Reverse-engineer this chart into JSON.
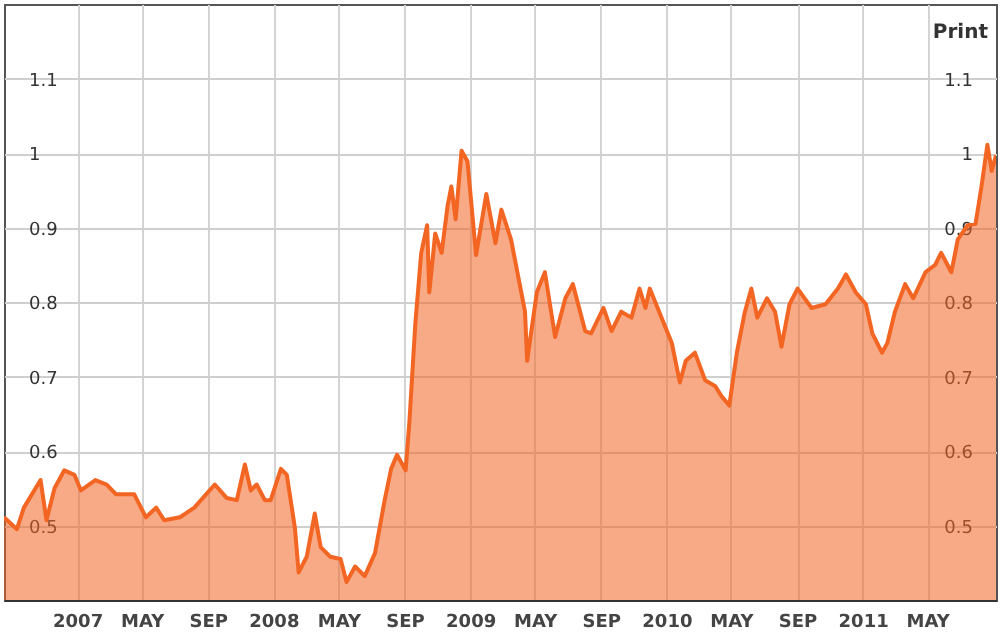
{
  "chart_data": {
    "type": "area",
    "annotations": [
      "Print"
    ],
    "x": [
      "2006-08-18",
      "2006-09-11",
      "2006-09-24",
      "2006-10-25",
      "2006-11-05",
      "2006-11-20",
      "2006-12-08",
      "2006-12-27",
      "2007-01-08",
      "2007-02-04",
      "2007-02-25",
      "2007-03-14",
      "2007-04-17",
      "2007-05-09",
      "2007-05-28",
      "2007-06-12",
      "2007-07-11",
      "2007-08-07",
      "2007-09-14",
      "2007-10-06",
      "2007-10-25",
      "2007-11-09",
      "2007-11-20",
      "2007-12-01",
      "2007-12-16",
      "2007-12-27",
      "2008-01-15",
      "2008-01-26",
      "2008-02-10",
      "2008-02-17",
      "2008-03-03",
      "2008-03-18",
      "2008-03-29",
      "2008-04-16",
      "2008-05-05",
      "2008-05-16",
      "2008-06-01",
      "2008-06-19",
      "2008-07-08",
      "2008-07-26",
      "2008-08-07",
      "2008-08-18",
      "2008-09-03",
      "2008-09-10",
      "2008-09-21",
      "2008-10-02",
      "2008-10-13",
      "2008-10-17",
      "2008-10-28",
      "2008-11-09",
      "2008-11-20",
      "2008-11-27",
      "2008-12-05",
      "2008-12-16",
      "2008-12-27",
      "2009-01-12",
      "2009-01-31",
      "2009-02-17",
      "2009-02-28",
      "2009-03-18",
      "2009-04-13",
      "2009-04-17",
      "2009-05-05",
      "2009-05-20",
      "2009-06-08",
      "2009-06-27",
      "2009-07-11",
      "2009-08-03",
      "2009-08-14",
      "2009-09-06",
      "2009-09-21",
      "2009-10-09",
      "2009-10-28",
      "2009-11-12",
      "2009-11-23",
      "2009-12-01",
      "2009-12-23",
      "2010-01-11",
      "2010-01-26",
      "2010-02-06",
      "2010-02-23",
      "2010-03-14",
      "2010-04-02",
      "2010-04-13",
      "2010-04-28",
      "2010-05-12",
      "2010-05-27",
      "2010-06-08",
      "2010-06-19",
      "2010-07-07",
      "2010-07-22",
      "2010-08-03",
      "2010-08-18",
      "2010-09-02",
      "2010-09-28",
      "2010-10-24",
      "2010-11-16",
      "2010-12-01",
      "2010-12-19",
      "2011-01-07",
      "2011-01-19",
      "2011-02-06",
      "2011-02-16",
      "2011-03-02",
      "2011-03-21",
      "2011-04-05",
      "2011-04-28",
      "2011-05-16",
      "2011-05-27",
      "2011-06-15",
      "2011-06-27",
      "2011-07-15",
      "2011-07-30",
      "2011-08-10",
      "2011-08-21",
      "2011-08-29",
      "2011-09-06"
    ],
    "series": [
      {
        "color": "#f26522",
        "values": [
          0.511,
          0.495,
          0.524,
          0.561,
          0.507,
          0.55,
          0.574,
          0.568,
          0.547,
          0.561,
          0.555,
          0.542,
          0.542,
          0.511,
          0.524,
          0.507,
          0.511,
          0.524,
          0.555,
          0.537,
          0.534,
          0.582,
          0.547,
          0.555,
          0.534,
          0.534,
          0.576,
          0.568,
          0.497,
          0.437,
          0.458,
          0.516,
          0.471,
          0.458,
          0.455,
          0.424,
          0.445,
          0.432,
          0.463,
          0.534,
          0.576,
          0.595,
          0.574,
          0.639,
          0.771,
          0.866,
          0.903,
          0.813,
          0.892,
          0.866,
          0.929,
          0.955,
          0.911,
          1.003,
          0.989,
          0.863,
          0.945,
          0.879,
          0.924,
          0.884,
          0.787,
          0.721,
          0.813,
          0.84,
          0.753,
          0.805,
          0.824,
          0.761,
          0.758,
          0.792,
          0.761,
          0.787,
          0.779,
          0.818,
          0.792,
          0.818,
          0.779,
          0.745,
          0.692,
          0.721,
          0.732,
          0.695,
          0.687,
          0.674,
          0.661,
          0.732,
          0.787,
          0.818,
          0.779,
          0.805,
          0.787,
          0.74,
          0.797,
          0.818,
          0.792,
          0.797,
          0.818,
          0.837,
          0.813,
          0.797,
          0.758,
          0.732,
          0.745,
          0.787,
          0.824,
          0.805,
          0.84,
          0.85,
          0.866,
          0.84,
          0.884,
          0.903,
          0.905,
          0.955,
          1.011,
          0.976,
          0.997
        ]
      }
    ],
    "xlim": [
      "2006-08-18",
      "2011-09-06"
    ],
    "xticks": [
      {
        "value": "2007-01-01",
        "label": "2007"
      },
      {
        "value": "2007-05-01",
        "label": "MAY"
      },
      {
        "value": "2007-09-01",
        "label": "SEP"
      },
      {
        "value": "2008-01-01",
        "label": "2008"
      },
      {
        "value": "2008-05-01",
        "label": "MAY"
      },
      {
        "value": "2008-09-01",
        "label": "SEP"
      },
      {
        "value": "2009-01-01",
        "label": "2009"
      },
      {
        "value": "2009-05-01",
        "label": "MAY"
      },
      {
        "value": "2009-09-01",
        "label": "SEP"
      },
      {
        "value": "2010-01-01",
        "label": "2010"
      },
      {
        "value": "2010-05-01",
        "label": "MAY"
      },
      {
        "value": "2010-09-01",
        "label": "SEP"
      },
      {
        "value": "2011-01-01",
        "label": "2011"
      },
      {
        "value": "2011-05-01",
        "label": "MAY"
      }
    ],
    "ylim": [
      0.4,
      1.2
    ],
    "yticks": [
      0.5,
      0.6,
      0.7,
      0.8,
      0.9,
      1,
      1.1
    ],
    "y2lim": [
      0.4,
      1.2
    ],
    "y2ticks": [
      0.5,
      0.6,
      0.7,
      0.8,
      0.9,
      1,
      1.1
    ],
    "grid": true
  }
}
